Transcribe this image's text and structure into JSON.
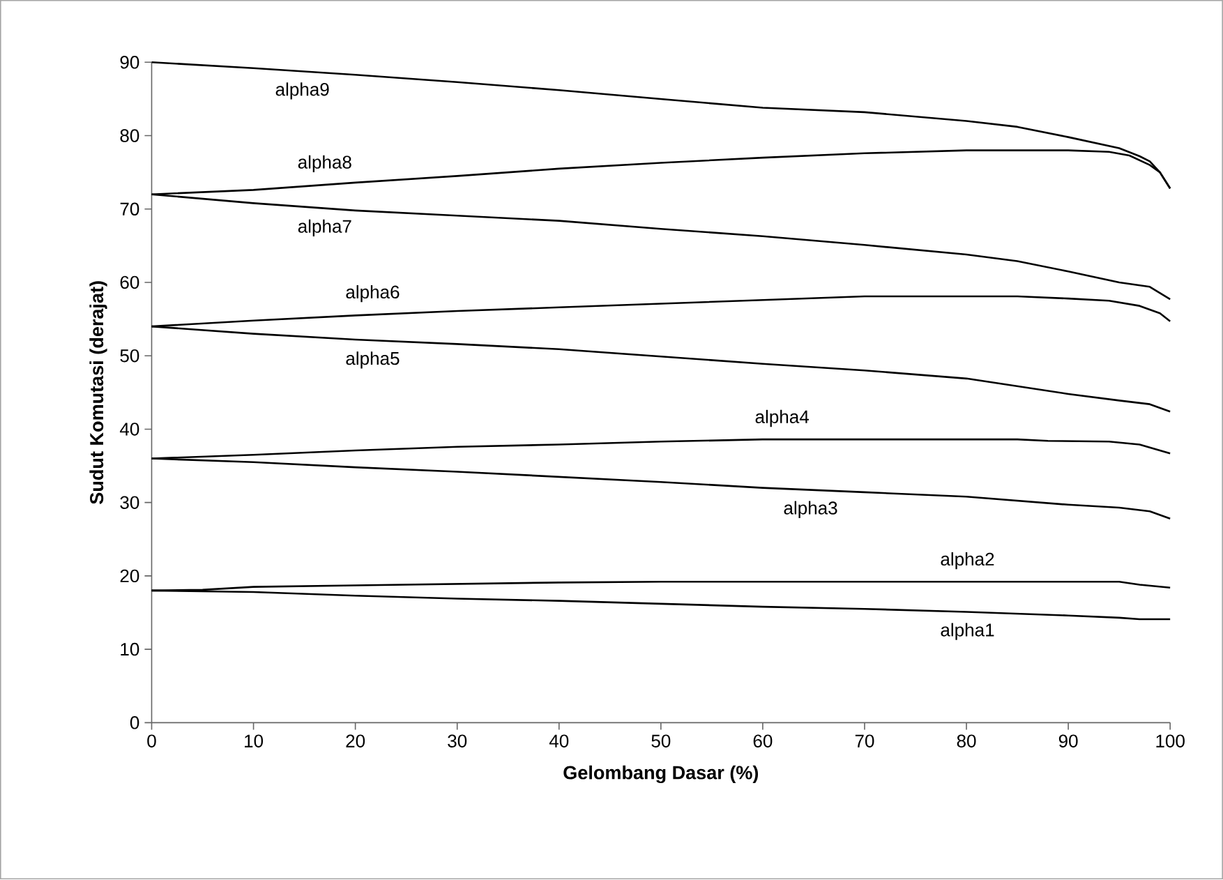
{
  "chart_data": {
    "type": "line",
    "xlabel": "Gelombang Dasar (%)",
    "ylabel": "Sudut Komutasi (derajat)",
    "xlim": [
      0,
      100
    ],
    "ylim": [
      0,
      90
    ],
    "xticks": [
      0,
      10,
      20,
      30,
      40,
      50,
      60,
      70,
      80,
      90,
      100
    ],
    "yticks": [
      0,
      10,
      20,
      30,
      40,
      50,
      60,
      70,
      80,
      90
    ],
    "grid": false,
    "legend": false,
    "marker": "none",
    "line_style": "solid",
    "series": [
      {
        "name": "alpha1",
        "color": "#000000",
        "x": [
          0,
          10,
          20,
          30,
          40,
          50,
          60,
          70,
          80,
          90,
          95,
          97,
          100
        ],
        "values": [
          18,
          17.8,
          17.3,
          16.9,
          16.6,
          16.2,
          15.8,
          15.5,
          15.1,
          14.6,
          14.3,
          14.1,
          14.1
        ]
      },
      {
        "name": "alpha2",
        "color": "#000000",
        "x": [
          0,
          5,
          10,
          20,
          30,
          40,
          50,
          95,
          97,
          100
        ],
        "values": [
          18,
          18.1,
          18.5,
          18.7,
          18.9,
          19.1,
          19.2,
          19.2,
          18.8,
          18.4
        ]
      },
      {
        "name": "alpha3",
        "color": "#000000",
        "x": [
          0,
          10,
          20,
          30,
          40,
          50,
          60,
          70,
          80,
          90,
          95,
          98,
          100
        ],
        "values": [
          36,
          35.5,
          34.8,
          34.2,
          33.5,
          32.8,
          32,
          31.4,
          30.8,
          29.7,
          29.3,
          28.8,
          27.8
        ]
      },
      {
        "name": "alpha4",
        "color": "#000000",
        "x": [
          0,
          10,
          20,
          30,
          40,
          50,
          60,
          85,
          88,
          94,
          97,
          100
        ],
        "values": [
          36,
          36.5,
          37.1,
          37.6,
          37.9,
          38.3,
          38.6,
          38.6,
          38.4,
          38.3,
          37.9,
          36.7
        ]
      },
      {
        "name": "alpha5",
        "color": "#000000",
        "x": [
          0,
          10,
          20,
          30,
          40,
          50,
          60,
          70,
          80,
          90,
          95,
          98,
          100
        ],
        "values": [
          54,
          53,
          52.2,
          51.6,
          50.9,
          49.9,
          48.9,
          48,
          46.9,
          44.8,
          43.9,
          43.4,
          42.4
        ]
      },
      {
        "name": "alpha6",
        "color": "#000000",
        "x": [
          0,
          10,
          20,
          30,
          40,
          50,
          60,
          70,
          85,
          90,
          94,
          97,
          99,
          100
        ],
        "values": [
          54,
          54.8,
          55.5,
          56.1,
          56.6,
          57.1,
          57.6,
          58.1,
          58.1,
          57.8,
          57.5,
          56.8,
          55.8,
          54.7
        ]
      },
      {
        "name": "alpha7",
        "color": "#000000",
        "x": [
          0,
          10,
          20,
          30,
          40,
          50,
          60,
          70,
          80,
          85,
          90,
          95,
          98,
          100
        ],
        "values": [
          72,
          70.8,
          69.8,
          69.1,
          68.4,
          67.3,
          66.3,
          65.1,
          63.8,
          62.9,
          61.5,
          60,
          59.4,
          57.7
        ]
      },
      {
        "name": "alpha8",
        "color": "#000000",
        "x": [
          0,
          10,
          20,
          30,
          40,
          50,
          60,
          70,
          80,
          90,
          94,
          96,
          98,
          99,
          100
        ],
        "values": [
          72,
          72.6,
          73.6,
          74.5,
          75.5,
          76.3,
          77,
          77.6,
          78,
          78,
          77.8,
          77.3,
          76,
          75,
          72.8
        ]
      },
      {
        "name": "alpha9",
        "color": "#000000",
        "x": [
          0,
          10,
          20,
          30,
          40,
          50,
          60,
          70,
          80,
          85,
          90,
          95,
          97,
          98,
          99,
          100
        ],
        "values": [
          90,
          89.2,
          88.3,
          87.3,
          86.2,
          85,
          83.8,
          83.2,
          82,
          81.2,
          79.8,
          78.3,
          77.2,
          76.5,
          75,
          72.8
        ]
      }
    ]
  }
}
